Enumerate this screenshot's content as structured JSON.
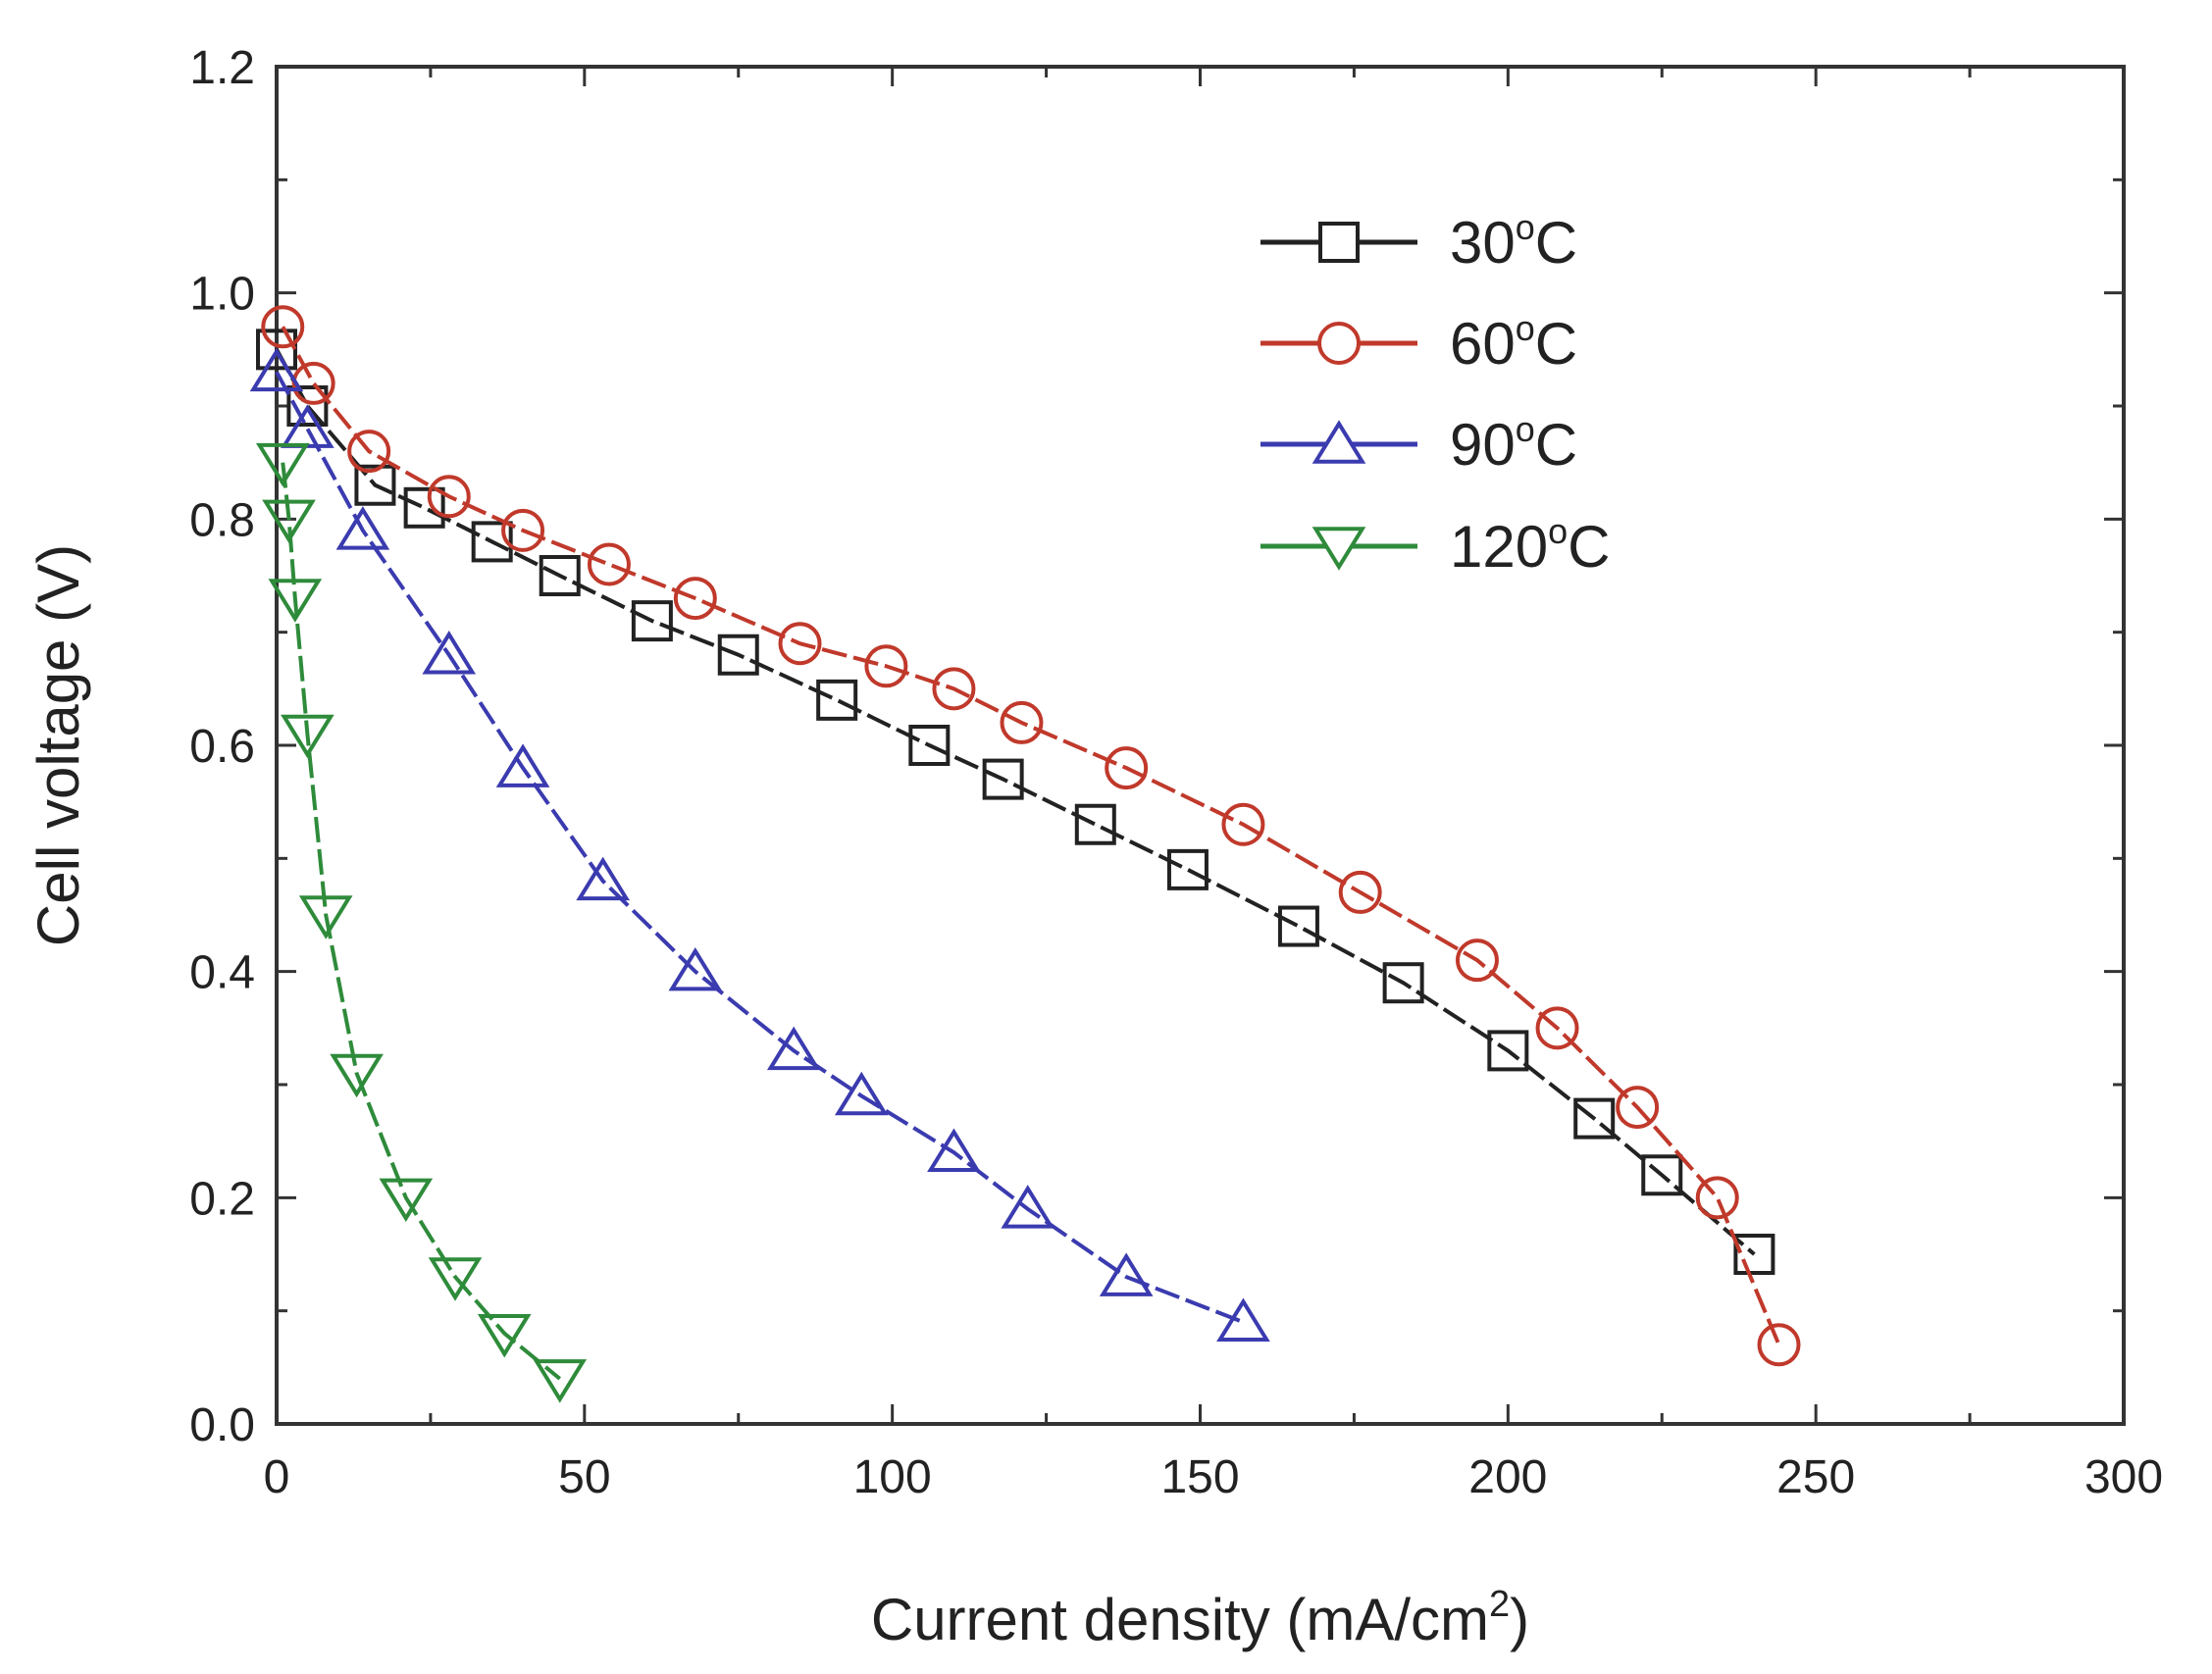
{
  "chart_data": {
    "type": "line",
    "title": "",
    "xlabel": "Current density (mA/cm",
    "xlabel_sup": "2",
    "xlabel_close": ")",
    "ylabel": "Cell voltage (V)",
    "xlim": [
      0,
      300
    ],
    "ylim": [
      0.0,
      1.2
    ],
    "x_ticks": [
      0,
      50,
      100,
      150,
      200,
      250,
      300
    ],
    "x_tick_labels": [
      "0",
      "50",
      "100",
      "150",
      "200",
      "250",
      "300"
    ],
    "y_ticks": [
      0.0,
      0.2,
      0.4,
      0.6,
      0.8,
      1.0,
      1.2
    ],
    "y_tick_labels": [
      "0.0",
      "0.2",
      "0.4",
      "0.6",
      "0.8",
      "1.0",
      "1.2"
    ],
    "grid": false,
    "legend_position": "top-right",
    "series": [
      {
        "name": "30°C",
        "label_num": "30",
        "label_unit": "C",
        "marker": "square",
        "color": "#222222",
        "x": [
          0,
          5,
          16,
          24,
          35,
          46,
          61,
          75,
          91,
          106,
          118,
          133,
          148,
          166,
          183,
          200,
          214,
          225,
          240
        ],
        "y": [
          0.95,
          0.9,
          0.83,
          0.81,
          0.78,
          0.75,
          0.71,
          0.68,
          0.64,
          0.6,
          0.57,
          0.53,
          0.49,
          0.44,
          0.39,
          0.33,
          0.27,
          0.22,
          0.15
        ]
      },
      {
        "name": "60°C",
        "label_num": "60",
        "label_unit": "C",
        "marker": "circle",
        "color": "#c0392b",
        "x": [
          1,
          6,
          15,
          28,
          40,
          54,
          68,
          85,
          99,
          110,
          121,
          138,
          157,
          176,
          195,
          208,
          221,
          234,
          244
        ],
        "y": [
          0.97,
          0.92,
          0.86,
          0.82,
          0.79,
          0.76,
          0.73,
          0.69,
          0.67,
          0.65,
          0.62,
          0.58,
          0.53,
          0.47,
          0.41,
          0.35,
          0.28,
          0.2,
          0.07
        ]
      },
      {
        "name": "90°C",
        "label_num": "90",
        "label_unit": "C",
        "marker": "triangle-up",
        "color": "#3b3bb0",
        "x": [
          0,
          5,
          14,
          28,
          40,
          53,
          68,
          84,
          95,
          110,
          122,
          138,
          157
        ],
        "y": [
          0.93,
          0.88,
          0.79,
          0.68,
          0.58,
          0.48,
          0.4,
          0.33,
          0.29,
          0.24,
          0.19,
          0.13,
          0.09
        ]
      },
      {
        "name": "120°C",
        "label_num": "120",
        "label_unit": "C",
        "marker": "triangle-down",
        "color": "#2e8b3a",
        "x": [
          1,
          2,
          3,
          5,
          8,
          13,
          21,
          29,
          37,
          46
        ],
        "y": [
          0.85,
          0.8,
          0.73,
          0.61,
          0.45,
          0.31,
          0.2,
          0.13,
          0.08,
          0.04
        ]
      }
    ]
  }
}
